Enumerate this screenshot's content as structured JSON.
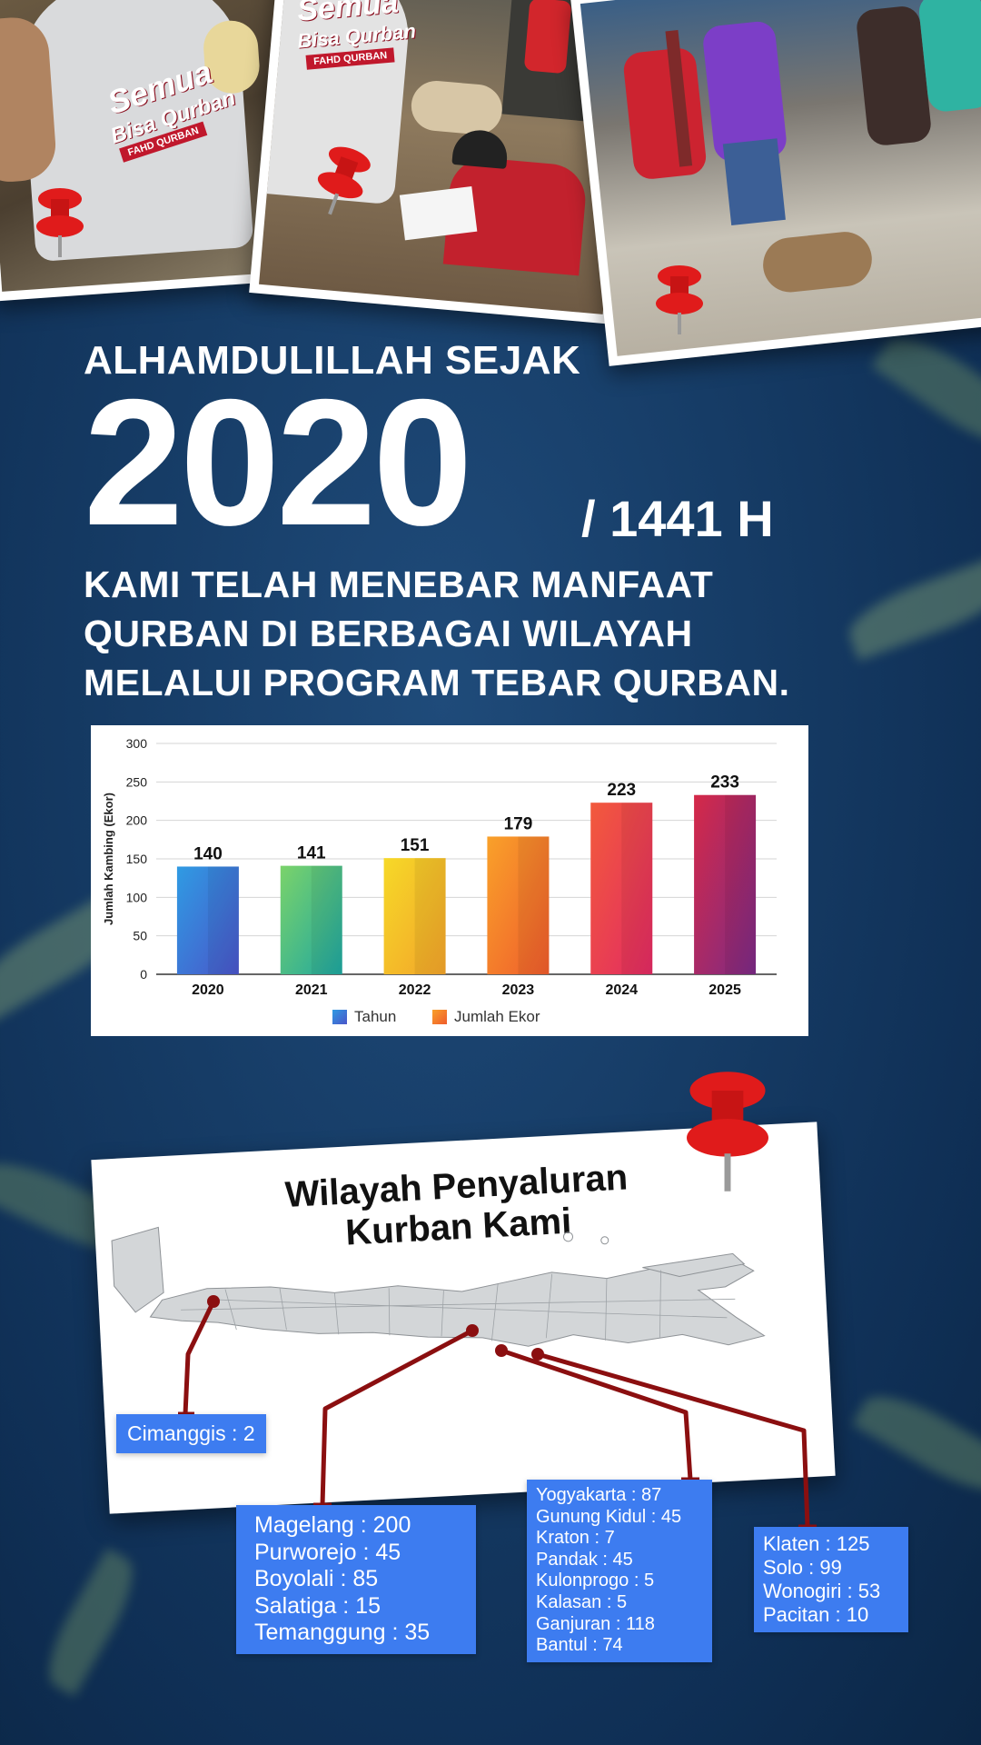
{
  "photos": [
    {
      "shirt_line1": "Semua",
      "shirt_line2": "Bisa Qurban",
      "shirt_band": "FAHD QURBAN"
    },
    {
      "shirt_line1": "Semua",
      "shirt_line2": "Bisa Qurban",
      "shirt_band": "FAHD QURBAN"
    },
    {
      "shirt_line1": "",
      "shirt_line2": "",
      "shirt_band": ""
    }
  ],
  "headline": {
    "kicker": "ALHAMDULILLAH SEJAK",
    "year": "2020",
    "hijri": "/ 1441 H",
    "line1": "KAMI TELAH MENEBAR MANFAAT",
    "line2": "QURBAN DI BERBAGAI WILAYAH",
    "line3": "MELALUI PROGRAM TEBAR QURBAN."
  },
  "chart_data": {
    "type": "bar",
    "categories": [
      "2020",
      "2021",
      "2022",
      "2023",
      "2024",
      "2025"
    ],
    "values": [
      140,
      141,
      151,
      179,
      223,
      233
    ],
    "title": "",
    "xlabel": "",
    "ylabel": "Jumlah Kambing (Ekor)",
    "ylim": [
      0,
      300
    ],
    "yticks": [
      0,
      50,
      100,
      150,
      200,
      250,
      300
    ],
    "grid": true,
    "legend": {
      "placement": "bottom",
      "entries": [
        "Tahun",
        "Jumlah Ekor"
      ]
    },
    "bar_colors": [
      [
        "#2f9be3",
        "#4a55c9"
      ],
      [
        "#7bd36a",
        "#1ea6a0"
      ],
      [
        "#f6d928",
        "#f2a32a"
      ],
      [
        "#f9a12a",
        "#ef5b2c"
      ],
      [
        "#f25a3c",
        "#e22a63"
      ],
      [
        "#d52948",
        "#7b2a86"
      ]
    ]
  },
  "map": {
    "title_line1": "Wilayah Penyaluran",
    "title_line2": "Kurban Kami",
    "land_color": "#d3d6d8",
    "leader_color": "#8b0f10",
    "label_color": "#3d7cf0",
    "groups": {
      "cimanggis": [
        "Cimanggis : 2"
      ],
      "magelang": [
        "Magelang : 200",
        "Purworejo : 45",
        "Boyolali : 85",
        "Salatiga : 15",
        "Temanggung : 35"
      ],
      "yogya": [
        "Yogyakarta : 87",
        "Gunung Kidul : 45",
        "Kraton : 7",
        "Pandak : 45",
        "Kulonprogo : 5",
        "Kalasan : 5",
        "Ganjuran : 118",
        "Bantul : 74"
      ],
      "klaten": [
        "Klaten : 125",
        "Solo : 99",
        "Wonogiri : 53",
        "Pacitan : 10"
      ]
    }
  },
  "colors": {
    "background": "#163c66",
    "pin_red": "#e01b1b",
    "photo_border": "#ffffff"
  }
}
